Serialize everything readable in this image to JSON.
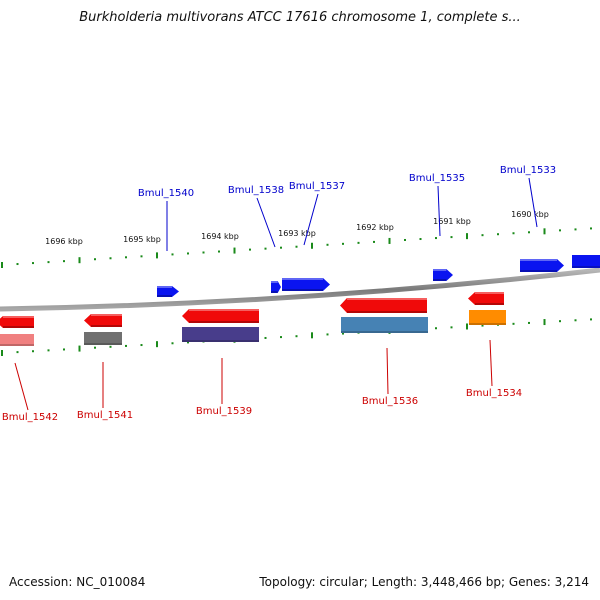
{
  "title": "Burkholderia multivorans ATCC 17616 chromosome 1, complete s...",
  "footer": {
    "accession": "Accession: NC_010084",
    "summary": "Topology: circular; Length: 3,448,466 bp; Genes: 3,214"
  },
  "colors": {
    "backbone": "#8c8c8c",
    "tick": "#1a8a1a",
    "plus_label": "#0000cc",
    "minus_label": "#cc0000",
    "plus_gene": "#0a14f0",
    "minus_gene": "#f00a0a"
  },
  "scale": {
    "unit": "kbp",
    "labels": [
      "1696 kbp",
      "1695 kbp",
      "1694 kbp",
      "1693 kbp",
      "1692 kbp",
      "1691 kbp",
      "1690 kbp"
    ]
  },
  "genes_plus": [
    {
      "label": "Bmul_1540",
      "color": "#0a14f0"
    },
    {
      "label": "Bmul_1538",
      "color": "#0a14f0"
    },
    {
      "label": "Bmul_1537",
      "color": "#0a14f0"
    },
    {
      "label": "Bmul_1535",
      "color": "#0a14f0"
    },
    {
      "label": "Bmul_1533",
      "color": "#0a14f0"
    }
  ],
  "genes_minus": [
    {
      "label": "Bmul_1542",
      "color": "#f00a0a",
      "sub_color": "#f08080"
    },
    {
      "label": "Bmul_1541",
      "color": "#f00a0a",
      "sub_color": "#707070"
    },
    {
      "label": "Bmul_1539",
      "color": "#f00a0a",
      "sub_color": "#483d8b"
    },
    {
      "label": "Bmul_1536",
      "color": "#f00a0a",
      "sub_color": "#4682b4"
    },
    {
      "label": "Bmul_1534",
      "color": "#f00a0a",
      "sub_color": "#ff8c00"
    }
  ]
}
